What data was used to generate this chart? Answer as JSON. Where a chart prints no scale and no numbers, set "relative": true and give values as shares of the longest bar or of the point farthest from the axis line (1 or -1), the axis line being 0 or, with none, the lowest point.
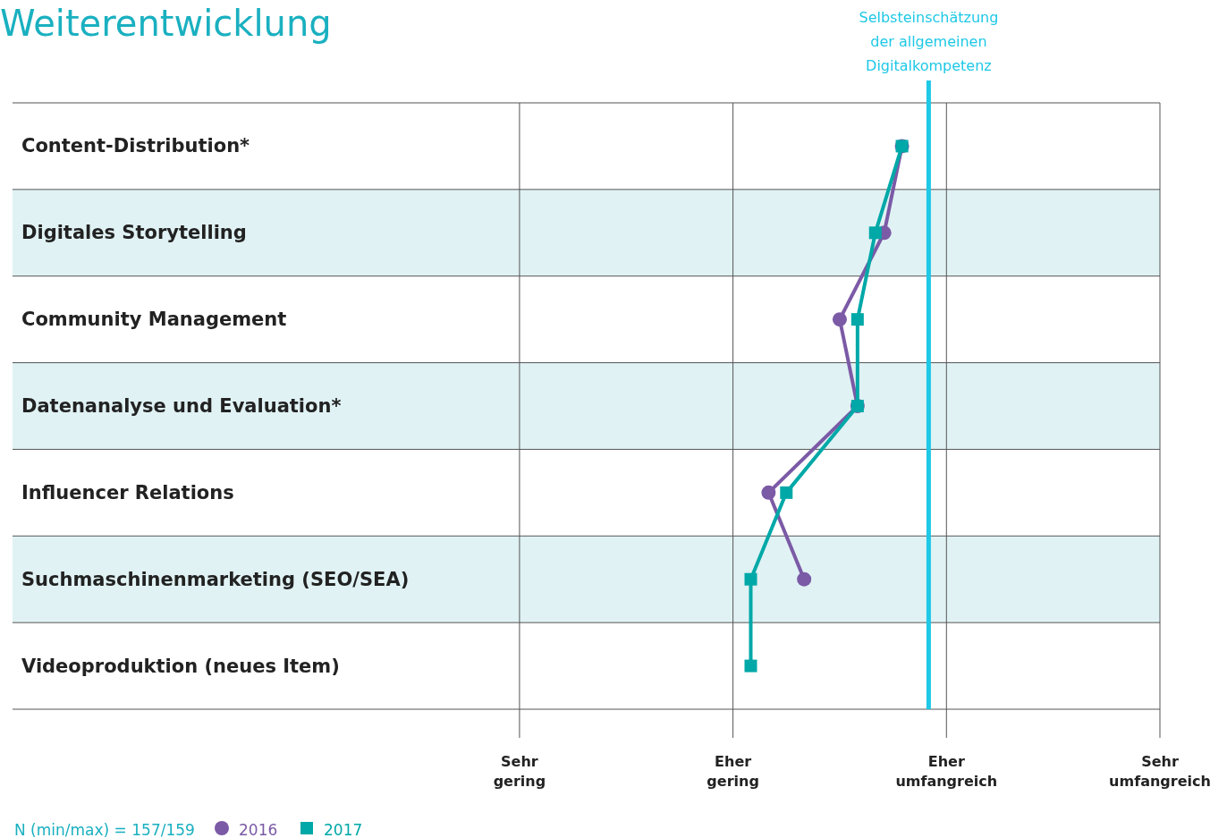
{
  "chart_data": {
    "type": "line",
    "title": "Weiterentwicklung",
    "orientation": "horizontal",
    "relative": true,
    "categories": [
      "Content-Distribution*",
      "Digitales Storytelling",
      "Community Management",
      "Datenanalyse und Evaluation*",
      "Influencer Relations",
      "Suchmaschinenmarketing (SEO/SEA)",
      "Videoproduktion (neues Item)"
    ],
    "series": [
      {
        "name": "2016",
        "color": "#7b5aa6",
        "marker": "circle",
        "values": [
          1.0,
          0.98,
          0.93,
          0.95,
          0.85,
          0.89,
          null
        ]
      },
      {
        "name": "2017",
        "color": "#00a8a8",
        "marker": "square",
        "values": [
          1,
          0.97,
          0.95,
          0.95,
          0.87,
          0.83,
          0.83
        ]
      }
    ],
    "ref_lines": [
      {
        "axis": "x",
        "value": 0.57,
        "label": "Sehr gering"
      },
      {
        "axis": "x",
        "value": 0.81,
        "label": "Eher gering"
      },
      {
        "axis": "x",
        "value": 1.05,
        "label": "Eher umfangreich"
      },
      {
        "axis": "x",
        "value": 1.29,
        "label": "Sehr umfangreich"
      },
      {
        "axis": "x",
        "value": 1.03,
        "label": "Selbsteinschätzung der allgemeinen Digitalkompetenz",
        "color": "#1ec8e6"
      }
    ],
    "legend": "bottom left",
    "annotations": [
      "N (min/max) = 157/159"
    ]
  }
}
